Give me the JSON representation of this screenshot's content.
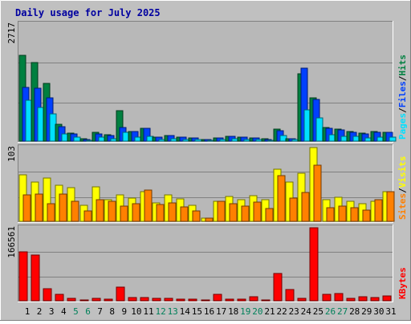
{
  "chart_data": {
    "type": "bar",
    "title": "Daily usage for July 2025",
    "categories": [
      "1",
      "2",
      "3",
      "4",
      "5",
      "6",
      "7",
      "8",
      "9",
      "10",
      "11",
      "12",
      "13",
      "14",
      "15",
      "16",
      "17",
      "18",
      "19",
      "20",
      "21",
      "22",
      "23",
      "24",
      "25",
      "26",
      "27",
      "28",
      "29",
      "30",
      "31"
    ],
    "weekend_days": [
      "5",
      "6",
      "12",
      "13",
      "19",
      "20",
      "26",
      "27"
    ],
    "panels": [
      {
        "id": "hits",
        "ymax_label": "2717",
        "ymax": 2717,
        "axis_label": {
          "parts": [
            "Pages",
            "/",
            "Files",
            "/",
            "Hits"
          ]
        },
        "series": [
          {
            "name": "Hits",
            "color": "#008040",
            "values": [
              2000,
              1830,
              1340,
              390,
              180,
              50,
              200,
              150,
              700,
              230,
              300,
              90,
              130,
              100,
              70,
              40,
              80,
              110,
              100,
              80,
              50,
              280,
              60,
              1560,
              1010,
              320,
              280,
              230,
              190,
              230,
              200
            ]
          },
          {
            "name": "Files",
            "color": "#0040ff",
            "values": [
              1250,
              1230,
              1000,
              330,
              175,
              45,
              175,
              130,
              310,
              220,
              290,
              90,
              130,
              95,
              70,
              40,
              80,
              110,
              100,
              80,
              45,
              250,
              60,
              1700,
              970,
              290,
              260,
              210,
              175,
              200,
              210
            ]
          },
          {
            "name": "Pages",
            "color": "#00e0ff",
            "values": [
              950,
              780,
              640,
              160,
              85,
              20,
              85,
              50,
              200,
              100,
              110,
              40,
              60,
              40,
              30,
              15,
              40,
              50,
              45,
              35,
              20,
              130,
              40,
              720,
              540,
              140,
              120,
              110,
              80,
              100,
              100
            ]
          }
        ]
      },
      {
        "id": "visits",
        "ymax_label": "103",
        "ymax": 103,
        "axis_label": {
          "parts": [
            "Sites",
            "/",
            "Visits"
          ]
        },
        "series": [
          {
            "name": "Visits",
            "color": "#ffff00",
            "values": [
              65,
              55,
              60,
              50,
              47,
              22,
              48,
              30,
              37,
              32,
              41,
              26,
              37,
              31,
              22,
              4,
              28,
              35,
              30,
              36,
              30,
              73,
              55,
              67,
              103,
              30,
              34,
              28,
              25,
              28,
              41
            ]
          },
          {
            "name": "Sites",
            "color": "#ff8000",
            "values": [
              37,
              38,
              25,
              38,
              28,
              15,
              30,
              28,
              21,
              25,
              44,
              23,
              26,
              20,
              14,
              4,
              28,
              25,
              21,
              27,
              18,
              64,
              32,
              40,
              78,
              19,
              21,
              19,
              16,
              30,
              41
            ]
          }
        ]
      },
      {
        "id": "kbytes",
        "ymax_label": "166561",
        "ymax": 166561,
        "axis_label": {
          "parts": [
            "KBytes"
          ]
        },
        "series": [
          {
            "name": "KBytes",
            "color": "#ff0000",
            "values": [
              112000,
              105000,
              27000,
              15000,
              5000,
              1500,
              6000,
              4000,
              32000,
              8000,
              8000,
              6000,
              6000,
              4500,
              3500,
              2000,
              15000,
              4500,
              4500,
              9000,
              1500,
              63000,
              26000,
              5000,
              166561,
              14000,
              16000,
              5000,
              10000,
              8000,
              11000
            ]
          }
        ]
      }
    ]
  }
}
